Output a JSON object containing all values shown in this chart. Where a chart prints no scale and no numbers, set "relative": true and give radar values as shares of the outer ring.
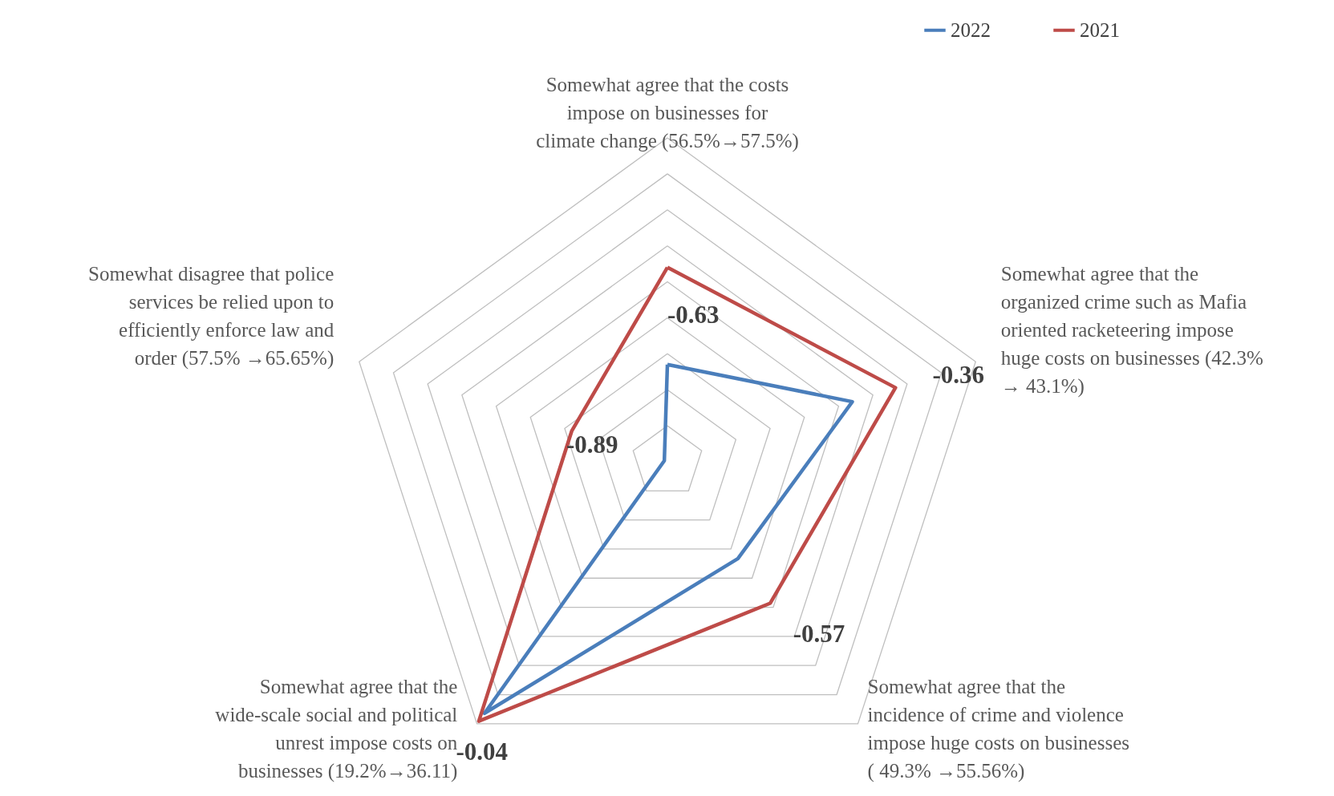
{
  "chart_data": {
    "type": "radar",
    "relative": true,
    "categories": [
      "Somewhat agree that the costs impose on businesses for climate change (56.5%→57.5%)",
      "Somewhat agree that the organized crime such as Mafia oriented racketeering  impose huge costs on businesses (42.3% → 43.1%)",
      "Somewhat agree that the incidence of crime and violence impose huge costs on businesses ( 49.3% →55.56%)",
      "Somewhat agree that the wide-scale social and political unrest impose costs on businesses (19.2%→36.11)",
      "Somewhat disagree that police services be relied upon to efficiently enforce law and order (57.5% →65.65%)"
    ],
    "series": [
      {
        "name": "2022",
        "color": "#4a7ebb",
        "values": [
          0.3,
          0.6,
          0.37,
          0.96,
          0.01
        ]
      },
      {
        "name": "2021",
        "color": "#be4b48",
        "values": [
          0.6,
          0.74,
          0.54,
          0.99,
          0.31
        ]
      }
    ],
    "annotations": [
      "-0.63",
      "-0.36",
      "-0.57",
      "-0.04",
      "-0.89"
    ],
    "legend": "top right"
  }
}
